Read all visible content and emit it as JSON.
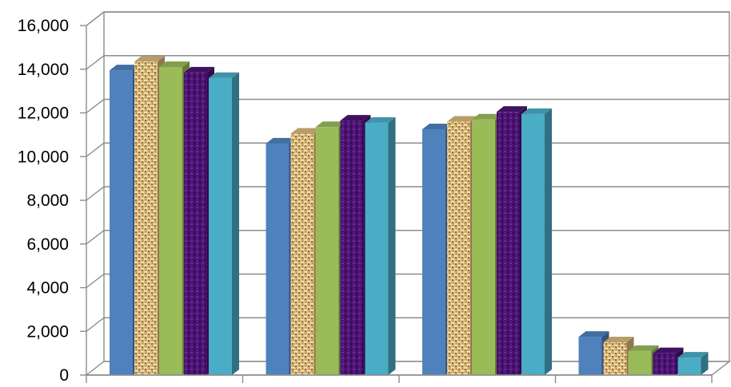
{
  "chart_data": {
    "type": "bar",
    "title": "",
    "xlabel": "",
    "ylabel": "",
    "categories": [
      "",
      "",
      "",
      ""
    ],
    "ylim": [
      0,
      16000
    ],
    "yticks": [
      0,
      2000,
      4000,
      6000,
      8000,
      10000,
      12000,
      14000,
      16000
    ],
    "ytick_labels": [
      "0",
      "2,000",
      "4,000",
      "6,000",
      "8,000",
      "10,000",
      "12,000",
      "14,000",
      "16,000"
    ],
    "grid": true,
    "style": "3d-clustered-column",
    "series": [
      {
        "values": [
          13950,
          10600,
          11250,
          1750
        ],
        "color": "#4f81bd",
        "fill": "solid"
      },
      {
        "values": [
          14350,
          11050,
          11600,
          1500
        ],
        "color": "#d9b87c",
        "fill": "burlap-texture"
      },
      {
        "values": [
          14100,
          11350,
          11700,
          1100
        ],
        "color": "#9bbb59",
        "fill": "solid"
      },
      {
        "values": [
          13850,
          11650,
          12050,
          1000
        ],
        "color": "#4b1372",
        "fill": "purple-mesh-texture"
      },
      {
        "values": [
          13600,
          11550,
          11950,
          800
        ],
        "color": "#4bacc6",
        "fill": "solid"
      }
    ]
  }
}
